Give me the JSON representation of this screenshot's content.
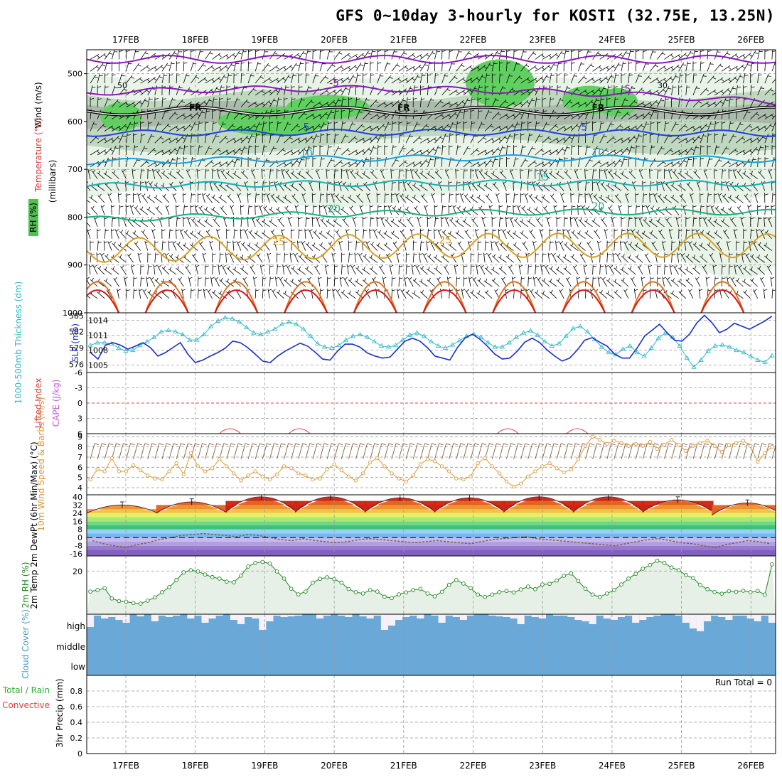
{
  "title": "GFS 0~10day 3-hourly for KOSTI (32.75E, 13.25N)",
  "dates": [
    "17FEB",
    "18FEB",
    "19FEB",
    "20FEB",
    "21FEB",
    "22FEB",
    "23FEB",
    "24FEB",
    "25FEB",
    "26FEB"
  ],
  "colors": {
    "temp_minus5": "#8a18b8",
    "temp_5": "#2040d8",
    "temp_10": "#18a0d8",
    "temp_15": "#18b0b8",
    "temp_20": "#18b080",
    "temp_25": "#d8a020",
    "temp_30": "#e07018",
    "temp_35": "#d81818",
    "rh_shade_light": "#e8f4e8",
    "rh_shade_mid": "#c0d8c0",
    "rh_shade_dark": "#a8b8a8",
    "rh_shade_green": "#60d060",
    "slp": "#1830c8",
    "thickness": "#30b8c8",
    "wind": "#e09838",
    "dewpt": "#806040",
    "rh2m": "#208820",
    "cloud": "#6aa8d8",
    "cloud_gap": "#f6f0f8"
  },
  "chart_data": [
    {
      "type": "contour",
      "panel": "upper_air",
      "ylabel_wind": "Wind (m/s)",
      "ylabel_temp": "Temperature (°C)",
      "ylabel_rh": "RH (%)",
      "ylabel_units": "(millibars)",
      "y_ticks": [
        500,
        600,
        700,
        800,
        900,
        1000
      ],
      "ylim": [
        1000,
        450
      ],
      "freezing_label": "FR",
      "rh_labels": [
        "50",
        "30"
      ],
      "isotherms": [
        {
          "label": "-5",
          "levels_mb": [
            540,
            515,
            560
          ],
          "label_days": [
            3.0,
            7.2
          ]
        },
        {
          "label": "5",
          "levels_mb": [
            625,
            620,
            625
          ],
          "label_days": [
            2.6,
            6.6
          ]
        },
        {
          "label": "10",
          "levels_mb": [
            685,
            670,
            680
          ],
          "label_days": [
            2.6,
            6.8
          ]
        },
        {
          "label": "15",
          "levels_mb": [
            735,
            725,
            730
          ],
          "label_days": [
            6.0
          ]
        },
        {
          "label": "20",
          "levels_mb": [
            805,
            785,
            790
          ],
          "label_days": [
            3.0,
            6.8
          ]
        },
        {
          "label": "25",
          "levels_mb": [
            870,
            855,
            860
          ],
          "label_days": [
            2.2,
            4.6
          ]
        }
      ]
    },
    {
      "type": "line",
      "panel": "slp_thickness",
      "ylabel_left": "1000-500mb Thickness (dm)",
      "ylabel_right": "SLP (mb)",
      "thickness_ticks": [
        576,
        579,
        582,
        585
      ],
      "slp_ticks": [
        1005,
        1008,
        1011,
        1014
      ],
      "slp_ylim": [
        1003.5,
        1015.5
      ],
      "thickness_ylim": [
        574.5,
        585.5
      ],
      "slp": [
        1007.5,
        1006.2,
        1009,
        1009.5,
        1009,
        1008.2,
        1008.8,
        1009.5,
        1008.5,
        1006.8,
        1007.5,
        1008.5,
        1009.5,
        1007.2,
        1005.5,
        1006,
        1006.8,
        1007.5,
        1008.4,
        1009.8,
        1009.5,
        1008.5,
        1007.2,
        1005.8,
        1005.5,
        1006.8,
        1007.8,
        1008.6,
        1009.4,
        1008.8,
        1007.6,
        1006.2,
        1006,
        1007.8,
        1009.2,
        1009.2,
        1008.6,
        1007.4,
        1006.8,
        1006.4,
        1006.6,
        1008.2,
        1009.8,
        1010.4,
        1009.8,
        1008.5,
        1006.8,
        1006.4,
        1006,
        1008.5,
        1010.4,
        1011.2,
        1010.2,
        1008.8,
        1007.2,
        1006.2,
        1006.4,
        1007.8,
        1009.6,
        1010.4,
        1009.5,
        1008,
        1006.8,
        1005.8,
        1006.4,
        1008,
        1010,
        1010.5,
        1009.6,
        1008.8,
        1007.2,
        1006.4,
        1006.4,
        1008.4,
        1010.8,
        1012,
        1013.2,
        1011.5,
        1010,
        1009.8,
        1011.2,
        1013.5,
        1015,
        1013.5,
        1011.5,
        1012.2,
        1013.4,
        1012.8,
        1012.2,
        1013,
        1013.8,
        1014.8
      ],
      "thickness": [
        579.5,
        580,
        580,
        579.8,
        579,
        578.5,
        578.6,
        579.5,
        580.2,
        581,
        582,
        582.3,
        582,
        581.5,
        580.5,
        580.5,
        581.5,
        583,
        584,
        584.6,
        584.4,
        583.8,
        582.8,
        581.8,
        581.5,
        582,
        582.5,
        583.4,
        583.8,
        583.4,
        582.5,
        581.2,
        579.8,
        579.2,
        579,
        579.5,
        580.5,
        581.2,
        581.5,
        581,
        580.2,
        579.4,
        579.2,
        579.5,
        580.5,
        581.4,
        581.8,
        581.2,
        580.2,
        579.4,
        579,
        579.6,
        580.4,
        581.2,
        581.6,
        581,
        580,
        579.2,
        579.2,
        580,
        581,
        581.8,
        582.2,
        581.4,
        580.2,
        579.4,
        579.8,
        581.2,
        582.6,
        583,
        582,
        580.6,
        579.2,
        578.2,
        577.8,
        578.8,
        579.4,
        578.2,
        577.5,
        579,
        580.8,
        581.8,
        581,
        579.4,
        577.2,
        575.5,
        576.8,
        578.5,
        579.4,
        579.6,
        579.2,
        578.6,
        578.2,
        577.5,
        576.8,
        576.4,
        577.6
      ]
    },
    {
      "type": "line",
      "panel": "lifted_index_cape",
      "ylabel_left": "Lifted Index",
      "ylabel_right": "CAPE (J/kg)",
      "y_ticks": [
        -6,
        -3,
        0,
        3,
        6
      ],
      "ylim": [
        -6,
        6
      ],
      "cape_bumps_day": [
        1.5,
        2.5,
        5.5,
        6.5
      ]
    },
    {
      "type": "line",
      "panel": "wind10m",
      "ylabel": "10m Wind Speed & Barbs (m/s)",
      "y_ticks": [
        4,
        5,
        6,
        7,
        8,
        9
      ],
      "ylim": [
        3.3,
        9.3
      ],
      "values": [
        4.8,
        5.8,
        5.6,
        6.9,
        5.6,
        5.6,
        6.2,
        5.7,
        5.2,
        4.9,
        4.8,
        5.6,
        6.4,
        5.3,
        7.4,
        6.1,
        5.6,
        5.9,
        6.8,
        6.1,
        5.4,
        4.7,
        5.2,
        5.6,
        5.1,
        4.8,
        5.3,
        6.1,
        5.9,
        5.4,
        5.2,
        4.8,
        4.9,
        5.8,
        6.3,
        5.7,
        5.1,
        4.7,
        5.4,
        6.5,
        6.9,
        6.1,
        5.4,
        4.9,
        4.6,
        5.2,
        6.3,
        6.8,
        6.6,
        6.1,
        5.6,
        4.9,
        4.8,
        5.1,
        6.4,
        6.9,
        6.1,
        5.4,
        4.6,
        4.1,
        4.4,
        5.1,
        5.6,
        6.1,
        6.4,
        5.9,
        5.5,
        5.8,
        6.8,
        8.1,
        9.0,
        8.7,
        8.3,
        8.6,
        8.4,
        8.1,
        8.3,
        8.1,
        8.5,
        7.8,
        8.2,
        8.7,
        8.2,
        7.6,
        8.1,
        8.4,
        8.6,
        8.1,
        7.5,
        8.2,
        8.4,
        8.6,
        8.1,
        6.5,
        7.4,
        8.0
      ]
    },
    {
      "type": "area",
      "panel": "temp2m",
      "ylabel": "2m Temp 2m DewPt (6hr Min/Max) (°C)",
      "y_ticks": [
        -16,
        -8,
        0,
        8,
        16,
        24,
        32,
        40
      ],
      "ylim": [
        -18,
        42
      ],
      "temp_min_daily": [
        24,
        24,
        25,
        25,
        25,
        25,
        25,
        25,
        25,
        22
      ],
      "temp_max_daily": [
        32,
        35,
        40,
        40,
        39,
        39,
        40,
        40,
        37,
        34
      ],
      "dewpoint": [
        -3,
        -6,
        -8,
        -10,
        -7,
        -5,
        -2,
        0,
        2,
        3,
        4,
        3,
        2,
        1,
        3,
        2,
        0,
        -2,
        -3,
        -1,
        -3,
        -4,
        -5,
        -4,
        -2,
        -1,
        -2,
        -3,
        -4,
        -5,
        -4,
        -3,
        -4,
        -5,
        -6,
        -4,
        -2,
        -1,
        0,
        1,
        -1,
        -2,
        -3,
        -4,
        -5,
        -6,
        -7,
        -8,
        -6,
        -4,
        -2,
        -1,
        -3,
        -5,
        -6,
        -8,
        -10,
        -7,
        -5,
        -3,
        -4,
        -6
      ]
    },
    {
      "type": "line",
      "panel": "rh2m",
      "ylabel": "2m RH (%)",
      "y_ticks": [
        20
      ],
      "ylim": [
        0,
        27
      ],
      "values": [
        10.5,
        11.2,
        12.1,
        7.3,
        6.1,
        5.8,
        5.2,
        4.9,
        6.3,
        7.8,
        10.2,
        12.5,
        15.8,
        19.4,
        20.4,
        19.8,
        18.4,
        17.2,
        16.5,
        15.1,
        14.8,
        17.9,
        22.1,
        23.8,
        24.2,
        23.5,
        19.8,
        16.5,
        11.8,
        9.2,
        10.5,
        14.6,
        16.4,
        17.1,
        16.3,
        14.6,
        11.7,
        10.2,
        9.6,
        11.2,
        10.5,
        8.1,
        7.5,
        9.2,
        10.1,
        11.2,
        11.7,
        9.6,
        8.3,
        10.4,
        13.6,
        15.9,
        14.2,
        12.1,
        9.1,
        8.0,
        9.1,
        10.2,
        10.8,
        10.1,
        11.5,
        12.8,
        11.6,
        13.8,
        14.1,
        15.6,
        17.8,
        18.9,
        15.4,
        11.8,
        9.1,
        8.0,
        9.6,
        11.2,
        13.8,
        16.5,
        18.7,
        21.1,
        22.8,
        24.8,
        23.7,
        21.6,
        20.4,
        18.1,
        16.8,
        13.5,
        11.6,
        10.3,
        9.5,
        10.7,
        10.4,
        10.9,
        10.2,
        10.8,
        9.1,
        23.1
      ]
    },
    {
      "type": "bar",
      "panel": "cloud",
      "ylabel": "Cloud Cover (%)",
      "layers": [
        "high",
        "middle",
        "low"
      ]
    },
    {
      "type": "bar",
      "panel": "precip",
      "ylabel_left": "Total / Rain",
      "ylabel_left2": "Convective",
      "ylabel_right": "3hr Precip (mm)",
      "run_total": "Run Total = 0",
      "y_ticks": [
        "0",
        "0.2",
        "0.4",
        "0.6",
        "0.8"
      ],
      "ylim": [
        0,
        1.0
      ],
      "values": []
    }
  ]
}
